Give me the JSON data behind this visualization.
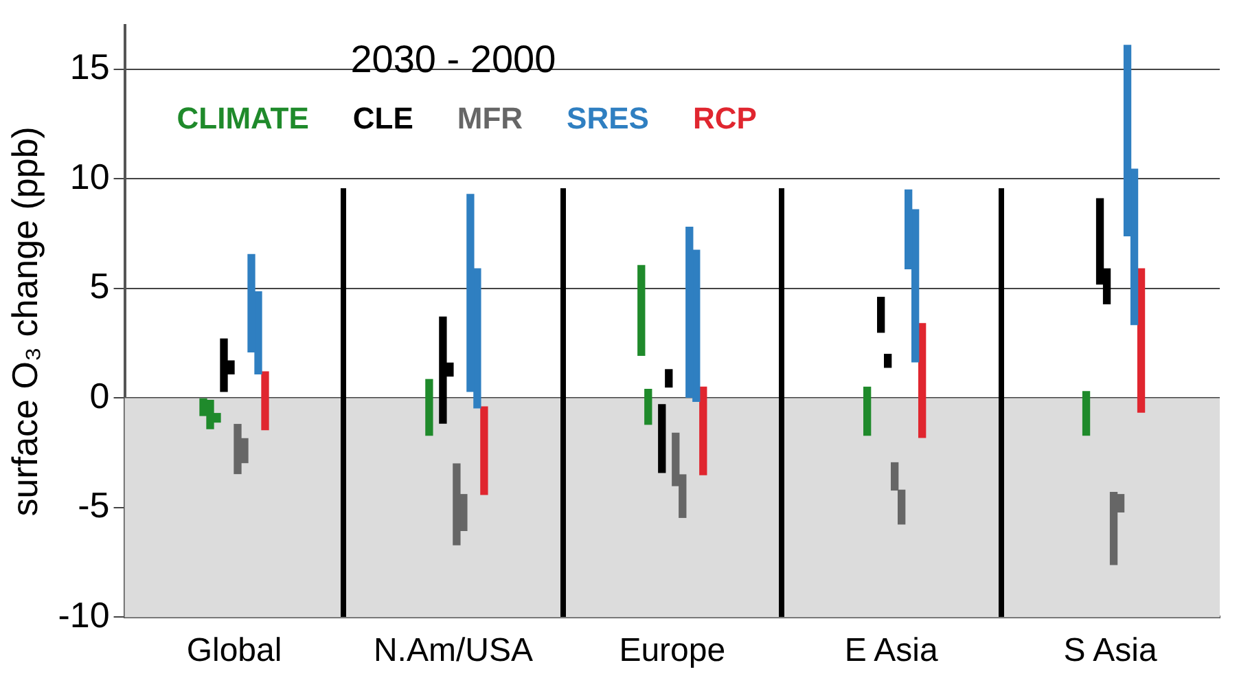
{
  "chart_data": {
    "type": "bar",
    "title": "2030 - 2000",
    "ylabel": "surface O₃ change (ppb)",
    "categories": [
      "Global",
      "N.Am/USA",
      "Europe",
      "E Asia",
      "S Asia"
    ],
    "series": [
      {
        "color": "#1f8a2b",
        "base": [
          -0.8,
          null,
          1.95,
          null,
          null
        ],
        "values": [
          0.8,
          null,
          4.1,
          null,
          null
        ]
      },
      {
        "name": "CLIMATE",
        "color": "#1f8a2b",
        "base": [
          -1.4,
          -1.7,
          -1.2,
          -1.7,
          -1.7
        ],
        "values": [
          1.3,
          2.55,
          1.6,
          2.2,
          2.0
        ]
      },
      {
        "color": "#1f8a2b",
        "base": [
          -1.1,
          null,
          null,
          null,
          null
        ],
        "values": [
          0.4,
          null,
          null,
          null,
          null
        ]
      },
      {
        "name": "CLE",
        "color": "#000000",
        "base": [
          0.3,
          -1.15,
          -3.4,
          3.0,
          5.2
        ],
        "values": [
          2.4,
          4.85,
          3.1,
          1.6,
          3.9
        ]
      },
      {
        "color": "#000000",
        "base": [
          1.1,
          1.0,
          0.5,
          1.4,
          4.3
        ],
        "values": [
          0.6,
          0.6,
          0.8,
          0.6,
          1.6
        ]
      },
      {
        "name": "MFR",
        "color": "#666666",
        "base": [
          -3.45,
          -6.7,
          -4.0,
          -4.2,
          -7.6
        ],
        "values": [
          2.25,
          3.7,
          2.4,
          1.25,
          3.3
        ]
      },
      {
        "color": "#666666",
        "base": [
          -2.95,
          -6.05,
          -5.45,
          -5.75,
          -5.2
        ],
        "values": [
          1.1,
          1.65,
          1.95,
          1.55,
          0.8
        ]
      },
      {
        "name": "SRES",
        "color": "#2f7fc1",
        "base": [
          2.1,
          0.3,
          0,
          5.9,
          7.4
        ],
        "values": [
          4.45,
          9.0,
          7.8,
          3.6,
          8.7
        ]
      },
      {
        "color": "#2f7fc1",
        "base": [
          1.1,
          -0.45,
          -0.15,
          1.65,
          3.35
        ],
        "values": [
          3.75,
          6.35,
          6.9,
          6.95,
          7.1
        ]
      },
      {
        "name": "RCP",
        "color": "#e0262f",
        "base": [
          -1.45,
          -4.4,
          -3.5,
          -1.8,
          -0.65
        ],
        "values": [
          2.65,
          4.0,
          4.0,
          5.2,
          6.55
        ]
      }
    ],
    "ylim": [
      -10,
      17
    ],
    "yticks": [
      -10,
      -5,
      0,
      5,
      10,
      15
    ],
    "bands": [
      {
        "axis": "y",
        "from": -10,
        "to": 0,
        "color": "#dcdcdc"
      }
    ],
    "grid": true,
    "legend": "top left"
  }
}
